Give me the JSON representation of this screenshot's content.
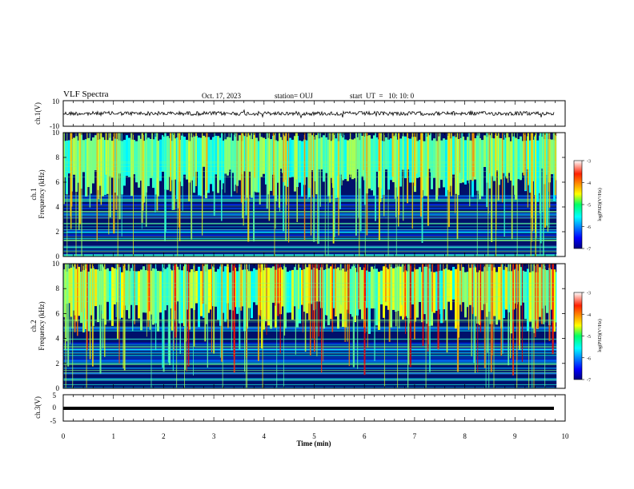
{
  "header": {
    "title": "VLF Spectra",
    "date": "Oct. 17, 2023",
    "station": "station= OUJ",
    "start": "start  UT  =   10: 10: 0"
  },
  "chart_data": [
    {
      "type": "line",
      "panel": "waveform-ch1",
      "ylabel": "ch.1(V)",
      "ylim": [
        -10,
        10
      ],
      "yticks": [
        "10",
        "-10"
      ],
      "xlim": [
        0,
        10
      ],
      "description_values": {
        "baseline_V": 0,
        "typical_amplitude_V": 1.5
      }
    },
    {
      "type": "heatmap",
      "panel": "spectrogram-ch1",
      "ylabel_line1": "ch.1",
      "ylabel_line2": "Frequency  (kHz)",
      "ylim": [
        0,
        10
      ],
      "yticks": [
        "0",
        "2",
        "4",
        "6",
        "8",
        "10"
      ],
      "xlim": [
        0,
        9.83
      ],
      "colorbar": {
        "label": "log(PSD)(V²/Hz)",
        "range": [
          -7,
          -3
        ],
        "ticks": [
          "-3",
          "-4",
          "-5",
          "-6",
          "-7"
        ]
      }
    },
    {
      "type": "heatmap",
      "panel": "spectrogram-ch2",
      "ylabel_line1": "ch.2",
      "ylabel_line2": "Frequency  (kHz)",
      "ylim": [
        0,
        10
      ],
      "yticks": [
        "0",
        "2",
        "4",
        "6",
        "8",
        "10"
      ],
      "xlim": [
        0,
        9.83
      ],
      "colorbar": {
        "label": "log(PSD)(V²/Hz)",
        "range": [
          -7,
          -3
        ],
        "ticks": [
          "-3",
          "-4",
          "-5",
          "-6",
          "-7"
        ]
      }
    },
    {
      "type": "line",
      "panel": "waveform-ch3",
      "ylabel": "ch.3(V)",
      "ylim": [
        -5,
        5
      ],
      "yticks": [
        "5",
        "0",
        "-5"
      ],
      "xlim": [
        0,
        10
      ],
      "description_values": {
        "baseline_V": -1.2
      }
    }
  ],
  "xaxis": {
    "label": "Time  (min)",
    "ticks": [
      "0",
      "1",
      "2",
      "3",
      "4",
      "5",
      "6",
      "7",
      "8",
      "9",
      "10"
    ],
    "range": [
      0,
      10
    ]
  },
  "colors": {
    "bg_low": "#000066",
    "mid": "#00c8ff",
    "high": "#ffee00",
    "peak": "#ff2000"
  }
}
